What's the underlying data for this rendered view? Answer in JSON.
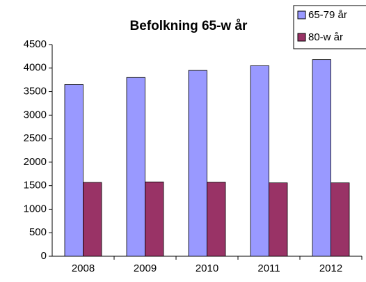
{
  "chart_data": {
    "type": "bar",
    "title": "Befolkning 65-w år",
    "categories": [
      "2008",
      "2009",
      "2010",
      "2011",
      "2012"
    ],
    "series": [
      {
        "name": "65-79 år",
        "color": "#9999ff",
        "values": [
          3650,
          3800,
          3950,
          4050,
          4180
        ]
      },
      {
        "name": "80-w år",
        "color": "#993366",
        "values": [
          1570,
          1580,
          1575,
          1560,
          1560
        ]
      }
    ],
    "ylim": [
      0,
      4500
    ],
    "yticks": [
      0,
      500,
      1000,
      1500,
      2000,
      2500,
      3000,
      3500,
      4000,
      4500
    ],
    "legend": "top-right"
  }
}
